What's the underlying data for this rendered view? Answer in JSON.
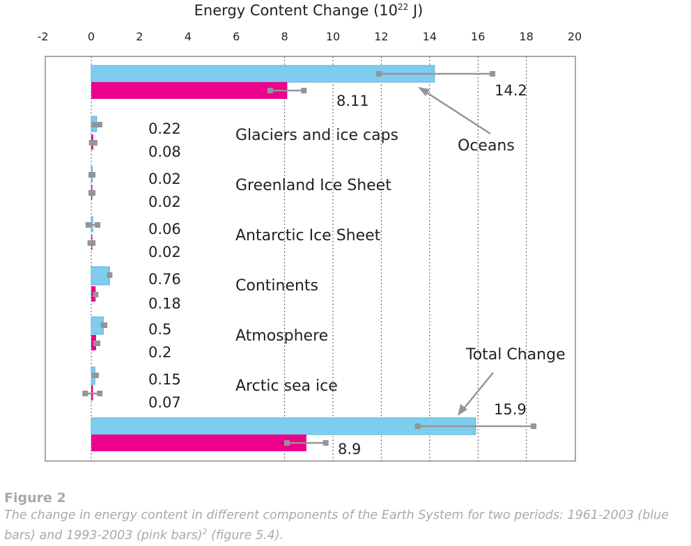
{
  "chart_data": {
    "type": "bar",
    "orientation": "horizontal",
    "axis_title_main": "Energy Content Change (10",
    "axis_title_exp": "22",
    "axis_title_unit": " J)",
    "xlim": [
      -2,
      20
    ],
    "xticks": [
      "-2",
      "0",
      "2",
      "4",
      "6",
      "8",
      "10",
      "12",
      "14",
      "16",
      "18",
      "20"
    ],
    "grid": "vertical dotted at 8, 10, 12, 14, 16, 18",
    "series_colors": {
      "blue": "#7fcdee",
      "pink": "#ec008c"
    },
    "errorbar_color": "#939598",
    "groups": [
      {
        "label": "",
        "blue": 14.2,
        "pink": 8.11,
        "blue_label": "14.2",
        "pink_label": "8.11",
        "blue_err": [
          11.9,
          16.6
        ],
        "pink_err": [
          7.4,
          8.8
        ]
      },
      {
        "label": "Glaciers and ice caps",
        "blue": 0.22,
        "pink": 0.08,
        "blue_label": "0.22",
        "pink_label": "0.08",
        "blue_err": [
          0.1,
          0.34
        ],
        "pink_err": [
          0.02,
          0.14
        ]
      },
      {
        "label": "Greenland Ice Sheet",
        "blue": 0.02,
        "pink": 0.02,
        "blue_label": "0.02",
        "pink_label": "0.02",
        "blue_err": [
          0.0,
          0.06
        ],
        "pink_err": [
          0.0,
          0.06
        ]
      },
      {
        "label": "Antarctic Ice Sheet",
        "blue": 0.06,
        "pink": 0.02,
        "blue_label": "0.06",
        "pink_label": "0.02",
        "blue_err": [
          -0.12,
          0.26
        ],
        "pink_err": [
          -0.04,
          0.06
        ]
      },
      {
        "label": "Continents",
        "blue": 0.76,
        "pink": 0.18,
        "blue_label": "0.76",
        "pink_label": "0.18",
        "blue_err": [
          0.76,
          0.76
        ],
        "pink_err": [
          0.18,
          0.18
        ]
      },
      {
        "label": "Atmosphere",
        "blue": 0.5,
        "pink": 0.2,
        "blue_label": "0.5",
        "pink_label": "0.2",
        "blue_err": [
          0.5,
          0.55
        ],
        "pink_err": [
          0.2,
          0.26
        ]
      },
      {
        "label": "Arctic sea ice",
        "blue": 0.15,
        "pink": 0.07,
        "blue_label": "0.15",
        "pink_label": "0.07",
        "blue_err": [
          0.15,
          0.2
        ],
        "pink_err": [
          -0.25,
          0.35
        ]
      },
      {
        "label": "",
        "blue": 15.9,
        "pink": 8.9,
        "blue_label": "15.9",
        "pink_label": "8.9",
        "blue_err": [
          13.5,
          18.3
        ],
        "pink_err": [
          8.1,
          9.7
        ]
      }
    ],
    "annotations": [
      {
        "text": "Oceans",
        "points_to": "Oceans blue bar end"
      },
      {
        "text": "Total Change",
        "points_to": "Total Change blue bar end"
      }
    ]
  },
  "caption": {
    "label": "Figure 2",
    "text_part1": "The change in energy content in different components of the Earth System for two periods: 1961-2003 (blue bars) and 1993-2003 (pink bars)",
    "superscript": "2",
    "text_part2": " (figure 5.4)."
  }
}
